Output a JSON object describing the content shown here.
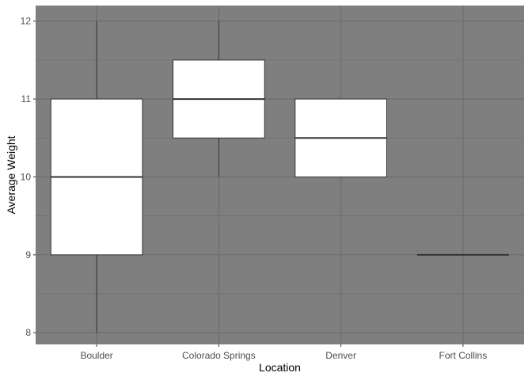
{
  "chart_data": {
    "type": "boxplot",
    "title": "",
    "xlabel": "Location",
    "ylabel": "Average Weight",
    "ylim": [
      7.85,
      12.2
    ],
    "y_ticks": [
      8,
      9,
      10,
      11,
      12
    ],
    "grid": true,
    "legend": "none",
    "categories": [
      "Boulder",
      "Colorado Springs",
      "Denver",
      "Fort Collins"
    ],
    "boxes": [
      {
        "category": "Boulder",
        "min": 8,
        "q1": 9,
        "median": 10,
        "q3": 11,
        "max": 12
      },
      {
        "category": "Colorado Springs",
        "min": 10,
        "q1": 10.5,
        "median": 11,
        "q3": 11.5,
        "max": 12
      },
      {
        "category": "Denver",
        "min": 10,
        "q1": 10,
        "median": 10.5,
        "q3": 11,
        "max": 11
      },
      {
        "category": "Fort Collins",
        "min": 9,
        "q1": 9,
        "median": 9,
        "q3": 9,
        "max": 9
      }
    ],
    "colors": {
      "panel_background": "#7f7f7f",
      "grid": "#6b6b6b",
      "box_fill": "#ffffff",
      "box_line": "#333333"
    }
  }
}
